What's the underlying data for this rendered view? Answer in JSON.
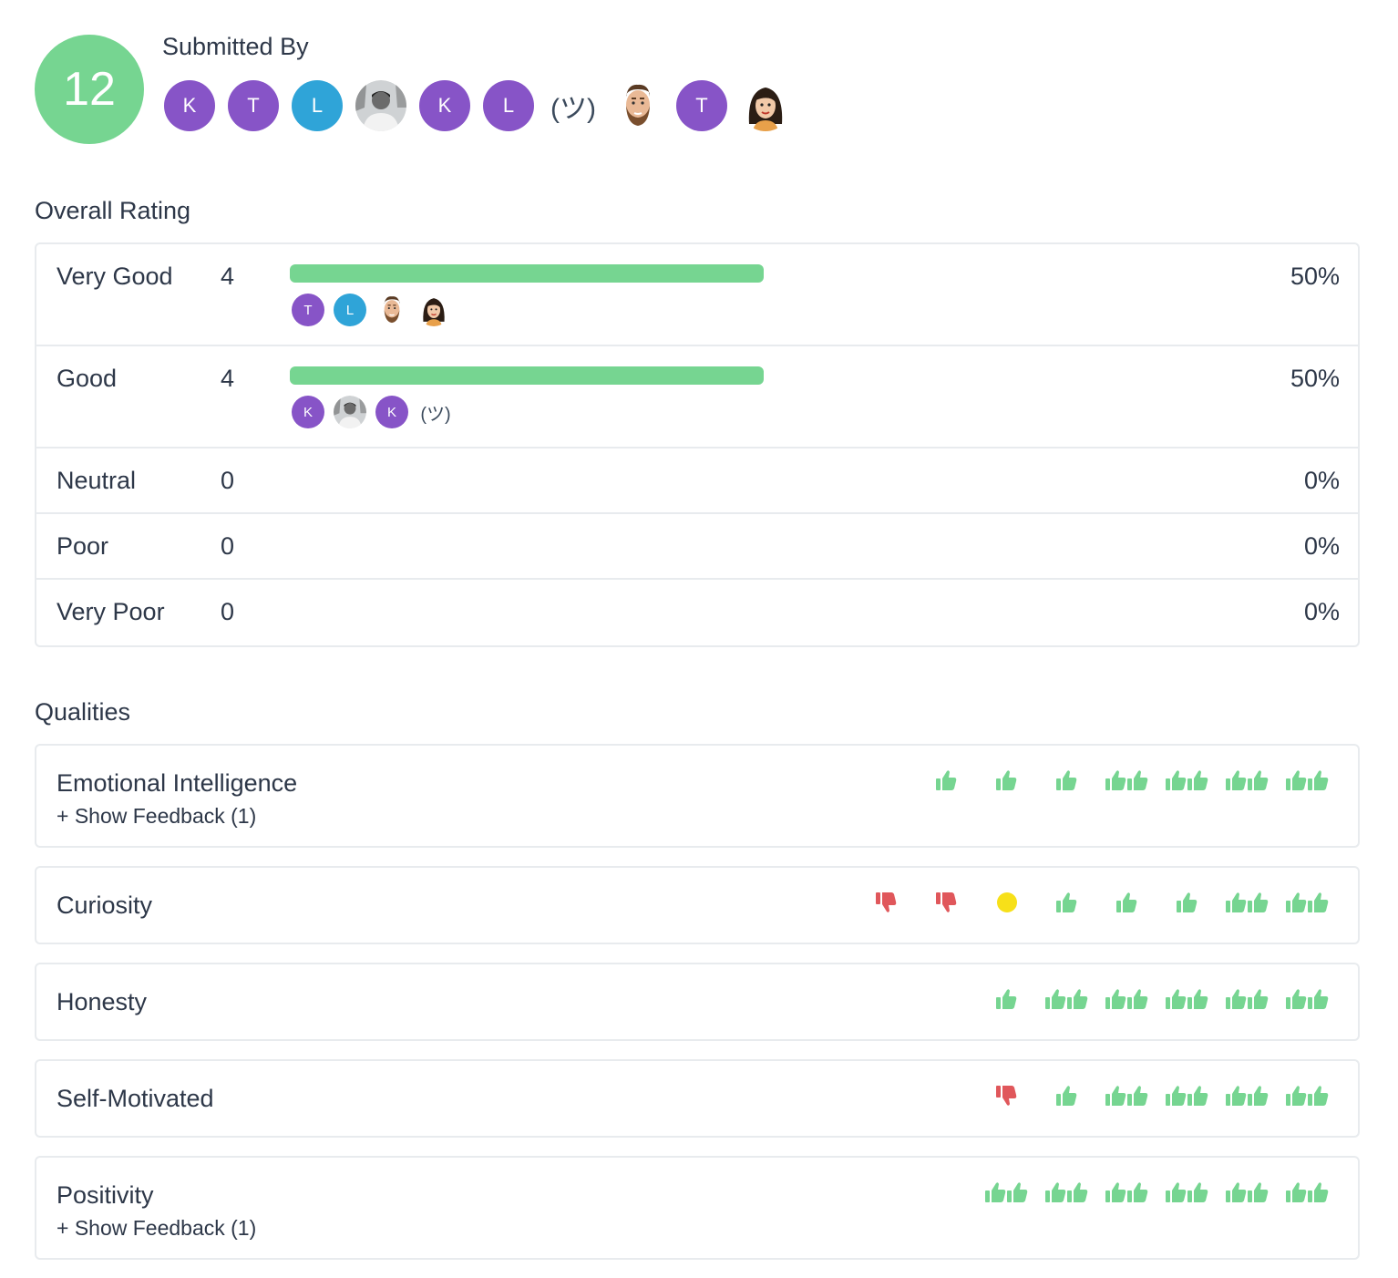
{
  "count": "12",
  "submitted_title": "Submitted By",
  "submitters": [
    {
      "type": "initial",
      "text": "K",
      "color": "#8754c7"
    },
    {
      "type": "initial",
      "text": "T",
      "color": "#8754c7"
    },
    {
      "type": "initial",
      "text": "L",
      "color": "#2fa4d8"
    },
    {
      "type": "photo",
      "icon": "person-photo-icon"
    },
    {
      "type": "initial",
      "text": "K",
      "color": "#8754c7"
    },
    {
      "type": "initial",
      "text": "L",
      "color": "#8754c7"
    },
    {
      "type": "text",
      "text": "(ツ)"
    },
    {
      "type": "photo",
      "icon": "bearded-man-avatar-icon"
    },
    {
      "type": "initial",
      "text": "T",
      "color": "#8754c7"
    },
    {
      "type": "photo",
      "icon": "woman-cartoon-avatar-icon"
    }
  ],
  "overall_rating_title": "Overall Rating",
  "ratings": [
    {
      "label": "Very Good",
      "count": "4",
      "percent": "50%",
      "fraction": 0.5,
      "voters": [
        {
          "type": "initial",
          "text": "T",
          "color": "#8754c7"
        },
        {
          "type": "initial",
          "text": "L",
          "color": "#2fa4d8"
        },
        {
          "type": "photo",
          "icon": "bearded-man-avatar-icon"
        },
        {
          "type": "photo",
          "icon": "woman-cartoon-avatar-icon"
        }
      ]
    },
    {
      "label": "Good",
      "count": "4",
      "percent": "50%",
      "fraction": 0.5,
      "voters": [
        {
          "type": "initial",
          "text": "K",
          "color": "#8754c7"
        },
        {
          "type": "photo",
          "icon": "person-photo-icon"
        },
        {
          "type": "initial",
          "text": "K",
          "color": "#8754c7"
        },
        {
          "type": "text",
          "text": "(ツ)"
        }
      ]
    },
    {
      "label": "Neutral",
      "count": "0",
      "percent": "0%",
      "fraction": 0,
      "voters": []
    },
    {
      "label": "Poor",
      "count": "0",
      "percent": "0%",
      "fraction": 0,
      "voters": []
    },
    {
      "label": "Very Poor",
      "count": "0",
      "percent": "0%",
      "fraction": 0,
      "voters": []
    }
  ],
  "qualities_title": "Qualities",
  "qualities": [
    {
      "name": "Emotional Intelligence",
      "feedback": "+ Show Feedback (1)",
      "icons": [
        "thumb-up-1",
        "thumb-up-1",
        "thumb-up-1",
        "thumb-up-2",
        "thumb-up-2",
        "thumb-up-2",
        "thumb-up-2"
      ]
    },
    {
      "name": "Curiosity",
      "feedback": "",
      "icons": [
        "thumb-down-1",
        "thumb-down-1",
        "neutral-dot",
        "thumb-up-1",
        "thumb-up-1",
        "thumb-up-1",
        "thumb-up-2",
        "thumb-up-2"
      ]
    },
    {
      "name": "Honesty",
      "feedback": "",
      "icons": [
        "thumb-up-1",
        "thumb-up-2",
        "thumb-up-2",
        "thumb-up-2",
        "thumb-up-2",
        "thumb-up-2"
      ]
    },
    {
      "name": "Self-Motivated",
      "feedback": "",
      "icons": [
        "thumb-down-1",
        "thumb-up-1",
        "thumb-up-2",
        "thumb-up-2",
        "thumb-up-2",
        "thumb-up-2"
      ]
    },
    {
      "name": "Positivity",
      "feedback": "+ Show Feedback (1)",
      "icons": [
        "thumb-up-2",
        "thumb-up-2",
        "thumb-up-2",
        "thumb-up-2",
        "thumb-up-2",
        "thumb-up-2"
      ]
    }
  ],
  "colors": {
    "accent_green": "#76d591",
    "thumb_down_red": "#e0575b",
    "neutral_yellow": "#f7e019"
  }
}
